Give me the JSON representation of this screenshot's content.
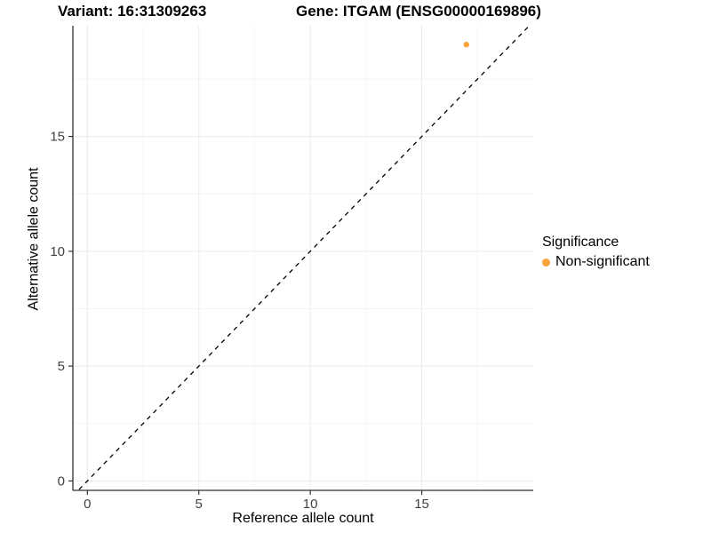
{
  "chart_data": {
    "type": "scatter",
    "title_left": "Variant: 16:31309263",
    "title_right": "Gene: ITGAM (ENSG00000169896)",
    "xlabel": "Reference allele count",
    "ylabel": "Alternative allele count",
    "x_ticks": [
      0,
      5,
      10,
      15
    ],
    "y_ticks": [
      0,
      5,
      10,
      15
    ],
    "x_minor_ticks": [
      2.5,
      7.5,
      12.5,
      17.5
    ],
    "y_minor_ticks": [
      2.5,
      7.5,
      12.5,
      17.5
    ],
    "xlim": [
      -0.65,
      20.0
    ],
    "ylim": [
      -0.41,
      19.82
    ],
    "grid": true,
    "points": [
      {
        "x": 17,
        "y": 19,
        "series": "Non-significant"
      }
    ],
    "identity_line": {
      "slope": 1,
      "intercept": 0,
      "style": "dashed",
      "color": "#000000"
    },
    "legend": {
      "title": "Significance",
      "position": "right",
      "entries": [
        {
          "label": "Non-significant",
          "color": "#F9A43B"
        }
      ]
    },
    "colors": {
      "point": "#F9A43B",
      "grid_major": "#ebebeb",
      "grid_minor": "#f5f5f5",
      "axis_line": "#333333",
      "tick_label": "#404040"
    }
  }
}
